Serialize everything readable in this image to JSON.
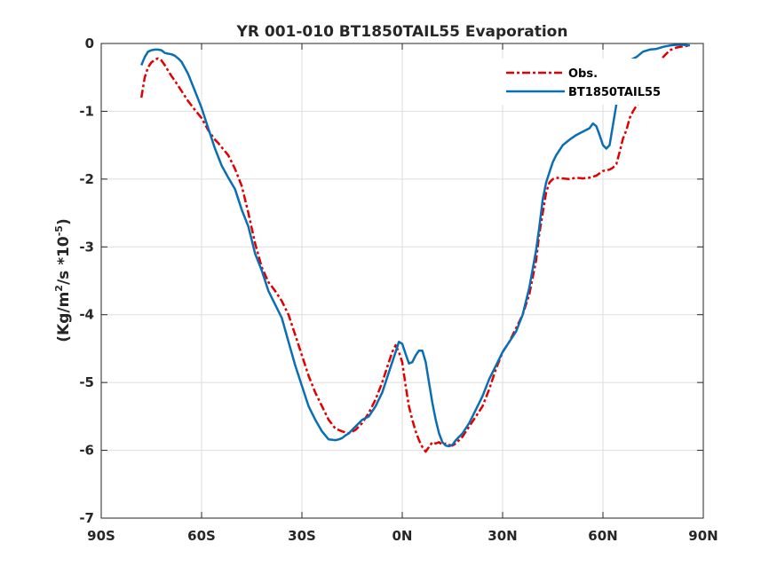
{
  "chart_data": {
    "type": "line",
    "title": "YR 001-010 BT1850TAIL55 Evaporation",
    "xlabel": "",
    "ylabel": "(Kg/m2/s *10-5)",
    "ylabel_parts": [
      "(Kg/m",
      "2",
      "/s *10",
      "-5",
      ")"
    ],
    "xlim": [
      -90,
      90
    ],
    "ylim": [
      -7,
      0
    ],
    "x_ticks": [
      -90,
      -60,
      -30,
      0,
      30,
      60,
      90
    ],
    "x_tick_labels": [
      "90S",
      "60S",
      "30S",
      "0N",
      "30N",
      "60N",
      "90N"
    ],
    "y_ticks": [
      0,
      -1,
      -2,
      -3,
      -4,
      -5,
      -6,
      -7
    ],
    "y_tick_labels": [
      "0",
      "-1",
      "-2",
      "-3",
      "-4",
      "-5",
      "-6",
      "-7"
    ],
    "grid": true,
    "legend_position": "top-right",
    "series": [
      {
        "name": "Obs.",
        "color": "#e00000",
        "style": "dash-dot",
        "x": [
          -78,
          -77,
          -76,
          -75,
          -74,
          -73,
          -72,
          -71,
          -70,
          -69,
          -68,
          -66,
          -64,
          -62,
          -60,
          -58,
          -56,
          -55,
          -54,
          -52,
          -50,
          -48,
          -46,
          -44,
          -42,
          -40,
          -38,
          -36,
          -34,
          -32,
          -30,
          -28,
          -26,
          -24,
          -22,
          -20,
          -18,
          -16,
          -14,
          -12,
          -10,
          -8,
          -6,
          -4,
          -3,
          -2,
          -1,
          0,
          1,
          2,
          3,
          4,
          5,
          6,
          7,
          8,
          9,
          10,
          11,
          12,
          13,
          14,
          15,
          16,
          18,
          20,
          22,
          24,
          26,
          28,
          30,
          32,
          34,
          36,
          38,
          40,
          41,
          42,
          43,
          44,
          45,
          46,
          48,
          50,
          52,
          54,
          56,
          58,
          60,
          62,
          63,
          64,
          65,
          66,
          67,
          68,
          69,
          70,
          71,
          72,
          74,
          76,
          78,
          80,
          82,
          84,
          86
        ],
        "y": [
          -0.8,
          -0.5,
          -0.35,
          -0.28,
          -0.24,
          -0.22,
          -0.25,
          -0.32,
          -0.4,
          -0.48,
          -0.55,
          -0.7,
          -0.85,
          -0.98,
          -1.1,
          -1.28,
          -1.42,
          -1.47,
          -1.53,
          -1.65,
          -1.85,
          -2.1,
          -2.5,
          -2.95,
          -3.3,
          -3.52,
          -3.65,
          -3.8,
          -4.0,
          -4.3,
          -4.6,
          -4.9,
          -5.15,
          -5.35,
          -5.55,
          -5.68,
          -5.72,
          -5.75,
          -5.7,
          -5.6,
          -5.45,
          -5.25,
          -5.0,
          -4.7,
          -4.55,
          -4.45,
          -4.55,
          -4.7,
          -5.05,
          -5.35,
          -5.55,
          -5.72,
          -5.85,
          -5.95,
          -6.02,
          -5.95,
          -5.88,
          -5.9,
          -5.88,
          -5.92,
          -5.9,
          -5.92,
          -5.93,
          -5.9,
          -5.8,
          -5.65,
          -5.5,
          -5.35,
          -5.1,
          -4.8,
          -4.55,
          -4.4,
          -4.2,
          -4.0,
          -3.7,
          -3.2,
          -2.8,
          -2.5,
          -2.2,
          -2.05,
          -2.0,
          -1.98,
          -1.99,
          -2.0,
          -1.98,
          -1.99,
          -1.98,
          -1.95,
          -1.88,
          -1.86,
          -1.83,
          -1.78,
          -1.6,
          -1.4,
          -1.28,
          -1.1,
          -1.0,
          -0.92,
          -0.85,
          -0.75,
          -0.55,
          -0.35,
          -0.2,
          -0.1,
          -0.06,
          -0.04,
          -0.03
        ]
      },
      {
        "name": "BT1850TAIL55",
        "color": "#0a6eb4",
        "style": "solid",
        "x": [
          -78,
          -77,
          -76,
          -75,
          -74,
          -73,
          -72,
          -71,
          -70,
          -69,
          -68,
          -67,
          -66,
          -64,
          -62,
          -60,
          -58,
          -56,
          -54,
          -52,
          -50,
          -48,
          -46,
          -44,
          -42,
          -40,
          -38,
          -36,
          -34,
          -32,
          -30,
          -28,
          -26,
          -24,
          -22,
          -20,
          -19,
          -18,
          -17,
          -16,
          -15,
          -14,
          -12,
          -10,
          -8,
          -6,
          -4,
          -2,
          -1,
          0,
          1,
          2,
          3,
          4,
          5,
          6,
          7,
          8,
          9,
          10,
          11,
          12,
          13,
          14,
          15,
          16,
          18,
          20,
          22,
          24,
          26,
          28,
          30,
          32,
          34,
          36,
          38,
          40,
          41,
          42,
          43,
          44,
          45,
          46,
          48,
          50,
          52,
          54,
          56,
          57,
          58,
          59,
          60,
          61,
          62,
          63,
          64,
          65,
          66,
          67,
          68,
          70,
          72,
          74,
          76,
          78,
          80,
          82,
          84,
          86
        ],
        "y": [
          -0.32,
          -0.2,
          -0.12,
          -0.1,
          -0.09,
          -0.09,
          -0.1,
          -0.14,
          -0.15,
          -0.16,
          -0.18,
          -0.22,
          -0.27,
          -0.45,
          -0.7,
          -0.95,
          -1.25,
          -1.55,
          -1.8,
          -1.98,
          -2.15,
          -2.45,
          -2.7,
          -3.1,
          -3.35,
          -3.65,
          -3.85,
          -4.05,
          -4.4,
          -4.75,
          -5.05,
          -5.35,
          -5.55,
          -5.72,
          -5.84,
          -5.85,
          -5.84,
          -5.82,
          -5.78,
          -5.75,
          -5.7,
          -5.65,
          -5.55,
          -5.5,
          -5.35,
          -5.15,
          -4.85,
          -4.55,
          -4.4,
          -4.43,
          -4.58,
          -4.72,
          -4.7,
          -4.6,
          -4.53,
          -4.53,
          -4.7,
          -5.0,
          -5.3,
          -5.55,
          -5.75,
          -5.88,
          -5.93,
          -5.94,
          -5.92,
          -5.85,
          -5.75,
          -5.6,
          -5.4,
          -5.2,
          -4.95,
          -4.75,
          -4.55,
          -4.4,
          -4.25,
          -4.0,
          -3.6,
          -3.05,
          -2.7,
          -2.3,
          -2.05,
          -1.9,
          -1.75,
          -1.65,
          -1.5,
          -1.42,
          -1.35,
          -1.3,
          -1.25,
          -1.18,
          -1.22,
          -1.35,
          -1.5,
          -1.55,
          -1.5,
          -1.2,
          -0.9,
          -0.6,
          -0.4,
          -0.3,
          -0.25,
          -0.2,
          -0.12,
          -0.09,
          -0.08,
          -0.05,
          -0.03,
          -0.02,
          -0.02,
          -0.03
        ]
      }
    ]
  }
}
